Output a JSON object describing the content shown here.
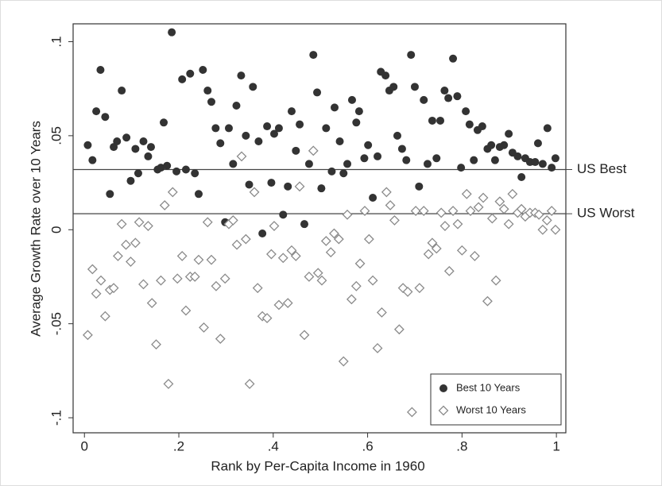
{
  "chart_data": {
    "type": "scatter",
    "x_label": "Rank by Per-Capita Income in 1960",
    "y_label": "Average Growth Rate over 10 Years",
    "xlim": [
      -0.024,
      1.02
    ],
    "ylim": [
      -0.108,
      0.1095
    ],
    "xticks": [
      0,
      {
        "value": 0.2,
        "label": ".2"
      },
      {
        "value": 0.4,
        "label": ".4"
      },
      {
        "value": 0.6,
        "label": ".6"
      },
      {
        "value": 0.8,
        "label": ".8"
      },
      1
    ],
    "yticks": [
      {
        "value": -0.1,
        "label": "-.1"
      },
      {
        "value": -0.05,
        "label": "-.05"
      },
      0,
      {
        "value": 0.05,
        "label": ".05"
      },
      {
        "value": 0.1,
        "label": ".1"
      }
    ],
    "legend": "bottom-right",
    "reference_lines": [
      {
        "label": "US Best",
        "value": 0.032
      },
      {
        "label": "US Worst",
        "value": 0.0085
      }
    ],
    "series": [
      {
        "name": "Best 10 Years",
        "color": "#333333",
        "marker": "circle",
        "x": [
          0.007,
          0.017,
          0.025,
          0.034,
          0.044,
          0.054,
          0.062,
          0.069,
          0.079,
          0.089,
          0.098,
          0.108,
          0.114,
          0.125,
          0.135,
          0.141,
          0.155,
          0.162,
          0.168,
          0.175,
          0.185,
          0.195,
          0.207,
          0.215,
          0.224,
          0.234,
          0.242,
          0.251,
          0.261,
          0.269,
          0.278,
          0.288,
          0.298,
          0.306,
          0.315,
          0.322,
          0.332,
          0.342,
          0.349,
          0.357,
          0.369,
          0.377,
          0.387,
          0.396,
          0.402,
          0.412,
          0.421,
          0.431,
          0.439,
          0.448,
          0.456,
          0.466,
          0.476,
          0.485,
          0.493,
          0.502,
          0.512,
          0.524,
          0.53,
          0.541,
          0.549,
          0.557,
          0.567,
          0.576,
          0.582,
          0.593,
          0.601,
          0.611,
          0.621,
          0.628,
          0.638,
          0.646,
          0.655,
          0.663,
          0.673,
          0.682,
          0.692,
          0.7,
          0.709,
          0.719,
          0.727,
          0.737,
          0.746,
          0.754,
          0.763,
          0.771,
          0.781,
          0.79,
          0.798,
          0.808,
          0.816,
          0.825,
          0.833,
          0.843,
          0.854,
          0.862,
          0.87,
          0.88,
          0.889,
          0.899,
          0.907,
          0.918,
          0.926,
          0.934,
          0.944,
          0.955,
          0.961,
          0.971,
          0.981,
          0.99,
          0.998
        ],
        "values": [
          0.045,
          0.037,
          0.063,
          0.085,
          0.06,
          0.019,
          0.044,
          0.047,
          0.074,
          0.049,
          0.026,
          0.043,
          0.03,
          0.047,
          0.039,
          0.044,
          0.032,
          0.033,
          0.057,
          0.034,
          0.105,
          0.031,
          0.08,
          0.032,
          0.083,
          0.03,
          0.019,
          0.085,
          0.074,
          0.068,
          0.054,
          0.046,
          0.004,
          0.054,
          0.035,
          0.066,
          0.082,
          0.05,
          0.024,
          0.076,
          0.047,
          -0.002,
          0.055,
          0.025,
          0.051,
          0.054,
          0.008,
          0.023,
          0.063,
          0.042,
          0.056,
          0.003,
          0.035,
          0.093,
          0.073,
          0.022,
          0.054,
          0.031,
          0.065,
          0.047,
          0.03,
          0.035,
          0.069,
          0.057,
          0.063,
          0.038,
          0.045,
          0.017,
          0.039,
          0.084,
          0.082,
          0.074,
          0.076,
          0.05,
          0.043,
          0.037,
          0.093,
          0.076,
          0.023,
          0.069,
          0.035,
          0.058,
          0.038,
          0.058,
          0.074,
          0.07,
          0.091,
          0.071,
          0.033,
          0.063,
          0.056,
          0.037,
          0.053,
          0.055,
          0.043,
          0.045,
          0.037,
          0.044,
          0.045,
          0.051,
          0.041,
          0.039,
          0.028,
          0.038,
          0.036,
          0.036,
          0.046,
          0.035,
          0.054,
          0.033,
          0.038
        ]
      },
      {
        "name": "Worst 10 Years",
        "color": "#8a8a8a",
        "marker": "diamond",
        "x": [
          0.007,
          0.017,
          0.025,
          0.035,
          0.044,
          0.054,
          0.062,
          0.071,
          0.079,
          0.088,
          0.098,
          0.108,
          0.116,
          0.125,
          0.135,
          0.143,
          0.152,
          0.162,
          0.17,
          0.178,
          0.187,
          0.197,
          0.207,
          0.215,
          0.224,
          0.234,
          0.242,
          0.253,
          0.261,
          0.269,
          0.279,
          0.288,
          0.298,
          0.306,
          0.315,
          0.323,
          0.333,
          0.342,
          0.35,
          0.36,
          0.367,
          0.377,
          0.387,
          0.396,
          0.402,
          0.412,
          0.421,
          0.431,
          0.439,
          0.448,
          0.456,
          0.466,
          0.476,
          0.485,
          0.495,
          0.503,
          0.512,
          0.522,
          0.529,
          0.539,
          0.549,
          0.557,
          0.566,
          0.576,
          0.584,
          0.594,
          0.603,
          0.611,
          0.621,
          0.63,
          0.64,
          0.648,
          0.657,
          0.667,
          0.675,
          0.685,
          0.694,
          0.702,
          0.71,
          0.719,
          0.729,
          0.737,
          0.746,
          0.756,
          0.764,
          0.773,
          0.781,
          0.791,
          0.8,
          0.81,
          0.818,
          0.827,
          0.835,
          0.845,
          0.854,
          0.864,
          0.872,
          0.88,
          0.889,
          0.899,
          0.907,
          0.918,
          0.926,
          0.934,
          0.944,
          0.955,
          0.963,
          0.971,
          0.98,
          0.99,
          0.998
        ],
        "values": [
          -0.056,
          -0.021,
          -0.034,
          -0.027,
          -0.046,
          -0.032,
          -0.031,
          -0.014,
          0.003,
          -0.008,
          -0.017,
          -0.007,
          0.004,
          -0.029,
          0.002,
          -0.039,
          -0.061,
          -0.027,
          0.013,
          -0.082,
          0.02,
          -0.026,
          -0.014,
          -0.043,
          -0.025,
          -0.025,
          -0.016,
          -0.052,
          0.004,
          -0.016,
          -0.03,
          -0.058,
          -0.026,
          0.003,
          0.005,
          -0.008,
          0.039,
          -0.005,
          -0.082,
          0.02,
          -0.031,
          -0.046,
          -0.047,
          -0.013,
          0.002,
          -0.04,
          -0.015,
          -0.039,
          -0.011,
          -0.014,
          0.023,
          -0.056,
          -0.025,
          0.042,
          -0.023,
          -0.027,
          -0.006,
          -0.012,
          -0.002,
          -0.005,
          -0.07,
          0.008,
          -0.037,
          -0.03,
          -0.018,
          0.01,
          -0.005,
          -0.027,
          -0.063,
          -0.044,
          0.02,
          0.013,
          0.005,
          -0.053,
          -0.031,
          -0.033,
          -0.097,
          0.01,
          -0.031,
          0.01,
          -0.013,
          -0.007,
          -0.01,
          0.009,
          0.002,
          -0.022,
          0.01,
          0.003,
          -0.011,
          0.019,
          0.01,
          -0.014,
          0.012,
          0.017,
          -0.038,
          0.006,
          -0.027,
          0.015,
          0.011,
          0.003,
          0.019,
          0.009,
          0.011,
          0.007,
          0.009,
          0.009,
          0.008,
          0.0,
          0.005,
          0.01,
          0.0
        ]
      }
    ]
  }
}
